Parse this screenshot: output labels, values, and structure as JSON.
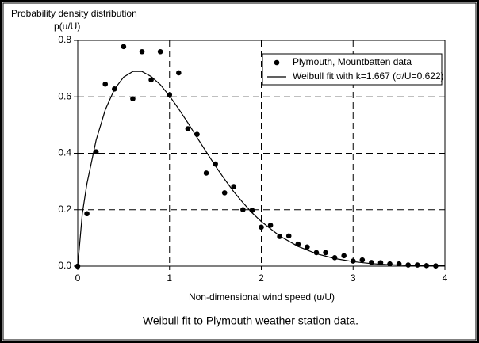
{
  "chart_data": {
    "type": "scatter-line",
    "title": "Probability density distribution",
    "ylabel": "p(u/U)",
    "xlabel": "Non-dimensional wind speed (u/U)",
    "caption": "Weibull fit to Plymouth weather station data.",
    "xlim": [
      0,
      4
    ],
    "xticks": [
      0,
      1,
      2,
      3,
      4
    ],
    "ylim": [
      0,
      0.8
    ],
    "yticks": [
      {
        "value": 0,
        "label": "0.0"
      },
      0.2,
      0.4,
      0.6,
      0.8
    ],
    "grid": true,
    "legend": "upper right",
    "series": [
      {
        "name": "Plymouth, Mountbatten data",
        "type": "scatter",
        "color": "#000000",
        "x": [
          0,
          0.1,
          0.2,
          0.3,
          0.4,
          0.5,
          0.6,
          0.7,
          0.8,
          0.9,
          1.0,
          1.1,
          1.2,
          1.3,
          1.4,
          1.5,
          1.6,
          1.7,
          1.8,
          1.9,
          2.0,
          2.1,
          2.2,
          2.3,
          2.4,
          2.5,
          2.6,
          2.7,
          2.8,
          2.9,
          3.0,
          3.1,
          3.2,
          3.3,
          3.4,
          3.5,
          3.6,
          3.7,
          3.8,
          3.9
        ],
        "values": [
          0,
          0.186,
          0.405,
          0.645,
          0.628,
          0.778,
          0.593,
          0.76,
          0.66,
          0.76,
          0.607,
          0.685,
          0.487,
          0.467,
          0.33,
          0.362,
          0.26,
          0.282,
          0.2,
          0.198,
          0.138,
          0.145,
          0.105,
          0.107,
          0.078,
          0.068,
          0.048,
          0.048,
          0.03,
          0.037,
          0.018,
          0.022,
          0.013,
          0.012,
          0.008,
          0.008,
          0.004,
          0.004,
          0.002,
          0.001
        ]
      },
      {
        "name": "Weibull fit with k=1.667 (σ/U=0.622)",
        "type": "line",
        "color": "#000000",
        "x": [
          0,
          0.05,
          0.1,
          0.2,
          0.3,
          0.4,
          0.5,
          0.6,
          0.7,
          0.8,
          0.9,
          1.0,
          1.1,
          1.2,
          1.3,
          1.4,
          1.5,
          1.6,
          1.7,
          1.8,
          1.9,
          2.0,
          2.2,
          2.4,
          2.6,
          2.8,
          3.0,
          3.2,
          3.4,
          3.6,
          3.8,
          4.0
        ],
        "values": [
          0,
          0.186,
          0.292,
          0.446,
          0.554,
          0.627,
          0.67,
          0.69,
          0.69,
          0.672,
          0.643,
          0.603,
          0.557,
          0.508,
          0.456,
          0.405,
          0.355,
          0.308,
          0.264,
          0.225,
          0.189,
          0.158,
          0.107,
          0.07,
          0.044,
          0.027,
          0.016,
          0.009,
          0.005,
          0.003,
          0.002,
          0.001
        ]
      }
    ]
  }
}
